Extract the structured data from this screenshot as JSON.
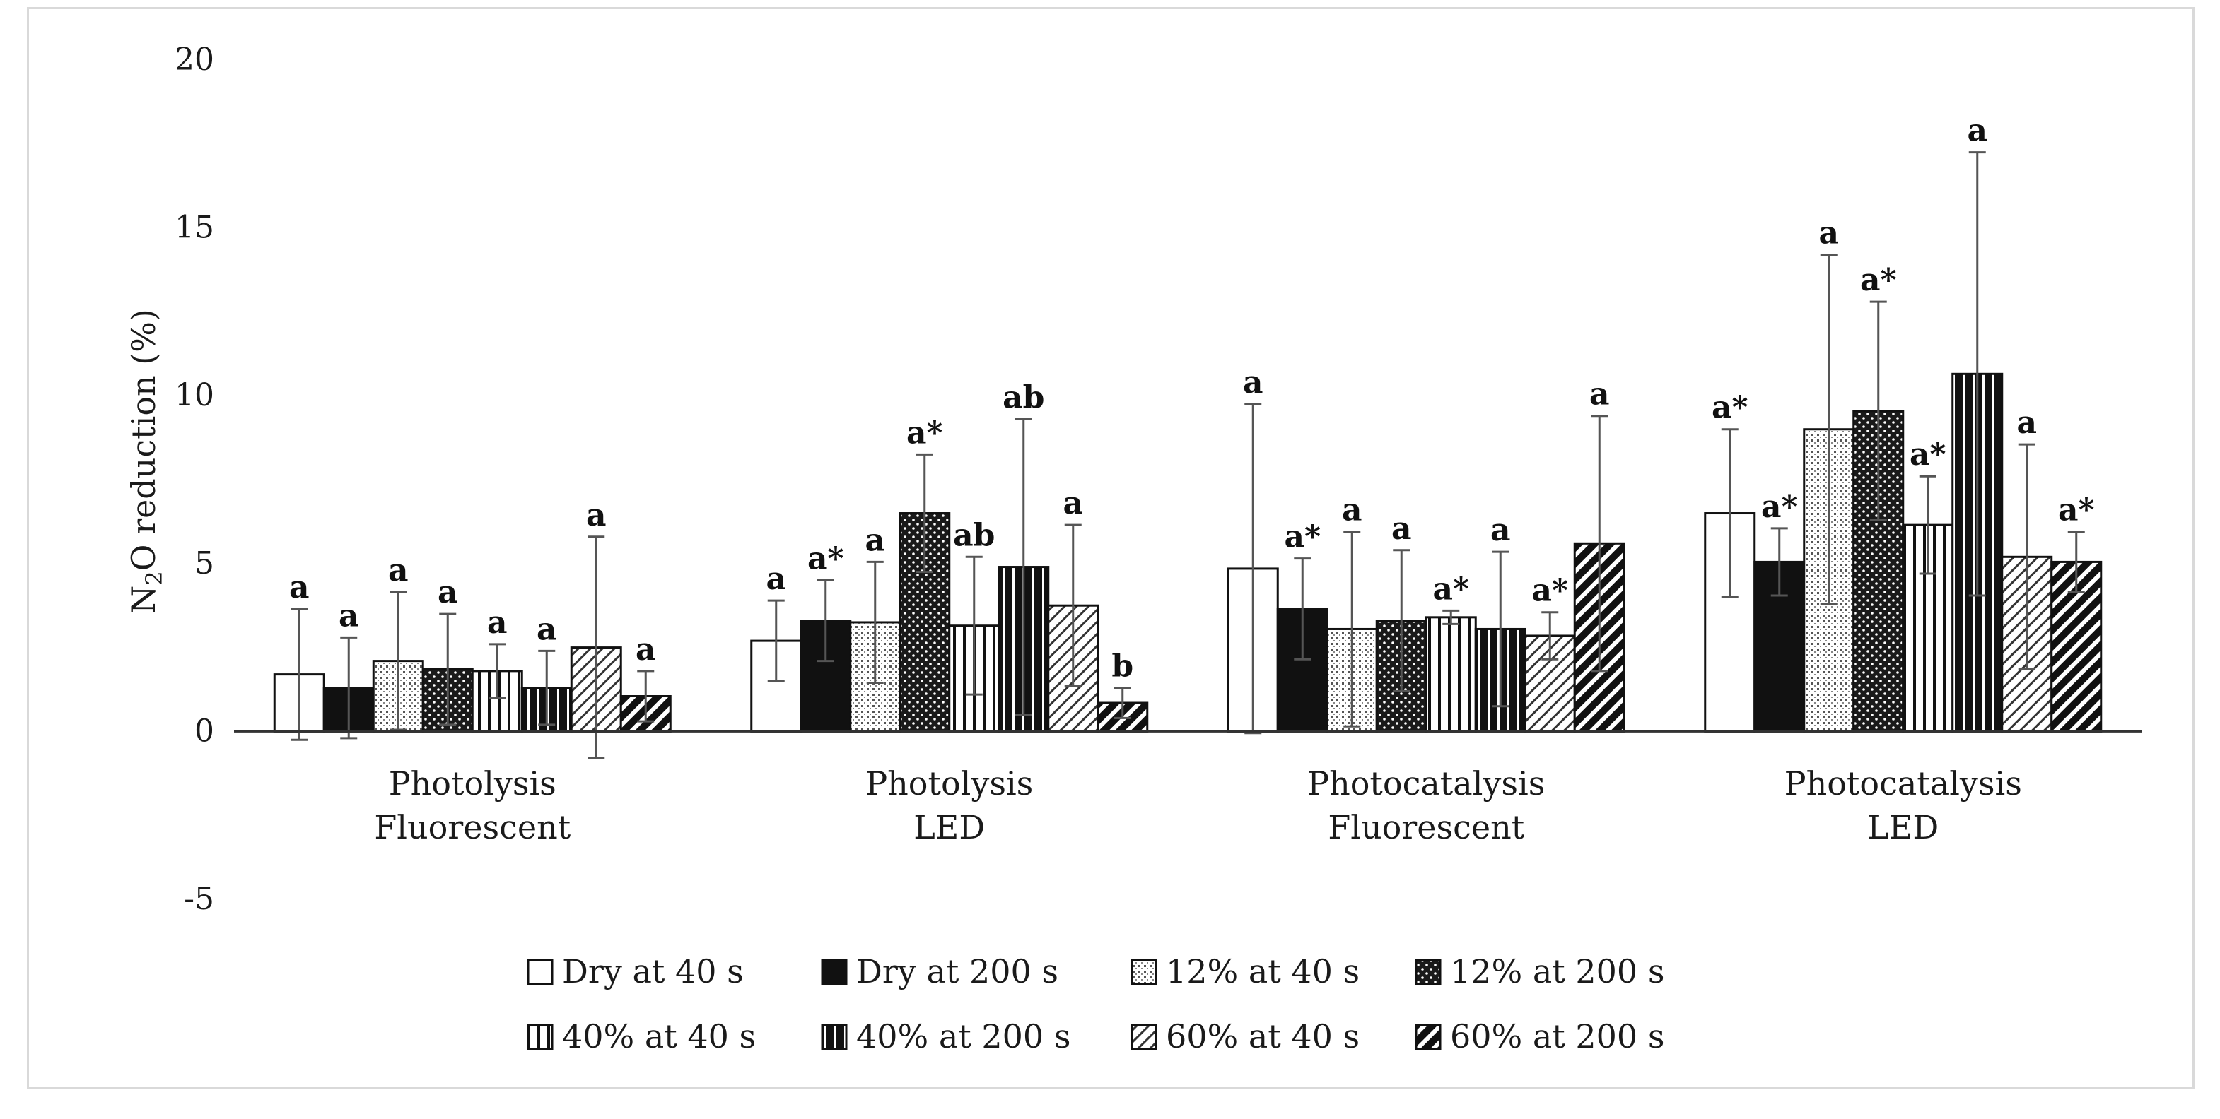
{
  "chart_data": {
    "type": "bar",
    "ylabel_parts": [
      "N",
      "2",
      "O reduction (%)"
    ],
    "ylim": [
      -5,
      20
    ],
    "yticks": [
      -5,
      0,
      5,
      10,
      15,
      20
    ],
    "categories": [
      [
        "Photolysis",
        "Fluorescent"
      ],
      [
        "Photolysis",
        "LED"
      ],
      [
        "Photocatalysis",
        "Fluorescent"
      ],
      [
        "Photocatalysis",
        "LED"
      ]
    ],
    "series": [
      {
        "name": "Dry at 40 s",
        "pattern": "white",
        "values": [
          1.7,
          2.7,
          4.85,
          6.5
        ],
        "errors": [
          1.95,
          1.2,
          4.9,
          2.5
        ],
        "labels": [
          "a",
          "a",
          "a",
          "a*"
        ]
      },
      {
        "name": "Dry at 200 s",
        "pattern": "black",
        "values": [
          1.3,
          3.3,
          3.65,
          5.05
        ],
        "errors": [
          1.5,
          1.2,
          1.5,
          1.0
        ],
        "labels": [
          "a",
          "a*",
          "a*",
          "a*"
        ]
      },
      {
        "name": "12% at 40 s",
        "pattern": "dots-fine",
        "values": [
          2.1,
          3.25,
          3.05,
          9.0
        ],
        "errors": [
          2.05,
          1.8,
          2.9,
          5.2
        ],
        "labels": [
          "a",
          "a",
          "a",
          "a"
        ]
      },
      {
        "name": "12% at 200 s",
        "pattern": "dots-dark",
        "values": [
          1.85,
          6.5,
          3.3,
          9.55
        ],
        "errors": [
          1.65,
          1.75,
          2.1,
          3.25
        ],
        "labels": [
          "a",
          "a*",
          "a",
          "a*"
        ]
      },
      {
        "name": "40% at 40 s",
        "pattern": "vlines-light",
        "values": [
          1.8,
          3.15,
          3.4,
          6.15
        ],
        "errors": [
          0.8,
          2.05,
          0.2,
          1.45
        ],
        "labels": [
          "a",
          "ab",
          "a*",
          "a*"
        ]
      },
      {
        "name": "40% at 200 s",
        "pattern": "vlines-dark",
        "values": [
          1.3,
          4.9,
          3.05,
          10.65
        ],
        "errors": [
          1.1,
          4.4,
          2.3,
          6.6
        ],
        "labels": [
          "a",
          "ab",
          "a",
          "a"
        ]
      },
      {
        "name": "60% at 40 s",
        "pattern": "diag-light",
        "values": [
          2.5,
          3.75,
          2.85,
          5.2
        ],
        "errors": [
          3.3,
          2.4,
          0.7,
          3.35
        ],
        "labels": [
          "a",
          "a",
          "a*",
          "a"
        ]
      },
      {
        "name": "60% at 200 s",
        "pattern": "diag-dark",
        "values": [
          1.05,
          0.85,
          5.6,
          5.05
        ],
        "errors": [
          0.75,
          0.45,
          3.8,
          0.9
        ],
        "labels": [
          "a",
          "b",
          "a",
          "a*"
        ]
      }
    ]
  }
}
